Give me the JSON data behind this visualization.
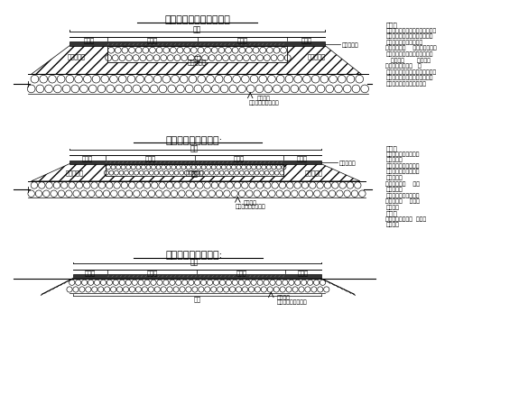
{
  "bg_color": "#ffffff",
  "line_color": "#000000",
  "title1": "软基及淤泥低注填靠地段",
  "title2": "地势较高的填方地段:",
  "title3": "挖方区软基换填地段:",
  "notes1": [
    "说明：",
    "、换填地段及深度详见工程量表。",
    "、视现场、填料情况及施工天气",
    "状况等确定填土或填石。",
    "、路面基层下    范围内需填石。",
    "、抛填片石的粒径人小不立小于",
    "   ，几小于       的粒径的",
    "片石含量不得超过   。",
    "、抛填顺序：先从路堤中部开始，",
    "中部向前先建搭再渐次向两侧展",
    "开，以使浆泥向两侧挤出。"
  ],
  "notes2": [
    "说明：",
    "、换填地段及深度详见",
    "工程量表。",
    "、视现场、填料情况及",
    "施工天气状况等确定填",
    "土或填石。",
    "、路面基层下    范围",
    "内填填石。",
    "、填土时须在土料在其",
    "最佳含水率    时填筑",
    "和碾压。",
    "说明：",
    "、换填地段及深度  详见工",
    "程量表。"
  ]
}
